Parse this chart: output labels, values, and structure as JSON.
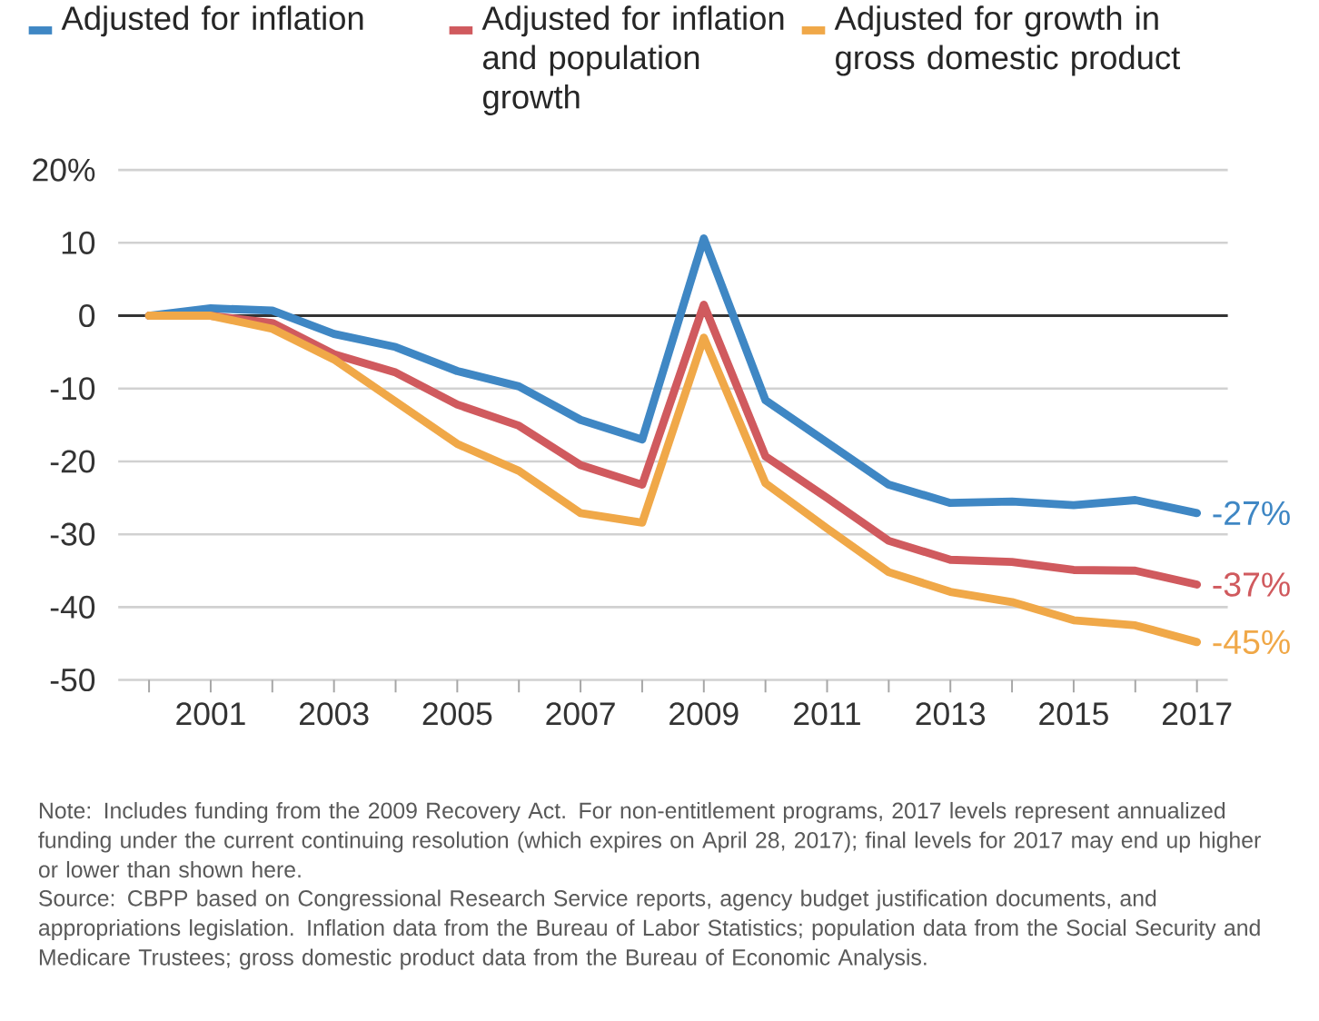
{
  "chart_data": {
    "type": "line",
    "x": [
      2000,
      2001,
      2002,
      2003,
      2004,
      2005,
      2006,
      2007,
      2008,
      2009,
      2010,
      2011,
      2012,
      2013,
      2014,
      2015,
      2016,
      2017
    ],
    "series": [
      {
        "name": "Adjusted for inflation",
        "color": "#3f87c4",
        "values": [
          0,
          1,
          0.7,
          -2.5,
          -4.3,
          -7.6,
          -9.7,
          -14.3,
          -17,
          10.6,
          -11.6,
          -17.4,
          -23.2,
          -25.7,
          -25.5,
          -26,
          -25.3,
          -27.1
        ],
        "value_labels": [
          null,
          null,
          null,
          null,
          null,
          null,
          null,
          null,
          null,
          null,
          null,
          null,
          null,
          null,
          null,
          null,
          null,
          "-27%"
        ]
      },
      {
        "name": "Adjusted for inflation and population growth",
        "color": "#d05a5e",
        "values": [
          0,
          0,
          -1,
          -5.3,
          -7.8,
          -12.2,
          -15.1,
          -20.5,
          -23.2,
          1.5,
          -19.3,
          -25,
          -30.9,
          -33.5,
          -33.8,
          -34.9,
          -35,
          -36.9
        ],
        "value_labels": [
          null,
          null,
          null,
          null,
          null,
          null,
          null,
          null,
          null,
          null,
          null,
          null,
          null,
          null,
          null,
          null,
          null,
          "-37%"
        ]
      },
      {
        "name": "Adjusted for growth in gross domestic product",
        "color": "#f0a848",
        "values": [
          0,
          0,
          -1.8,
          -6,
          -11.8,
          -17.6,
          -21.3,
          -27.1,
          -28.4,
          -3,
          -23,
          -29.2,
          -35.2,
          -37.9,
          -39.3,
          -41.8,
          -42.5,
          -44.8
        ],
        "value_labels": [
          null,
          null,
          null,
          null,
          null,
          null,
          null,
          null,
          null,
          null,
          null,
          null,
          null,
          null,
          null,
          null,
          null,
          "-45%"
        ]
      }
    ],
    "xlim": [
      1999.5,
      2017.5
    ],
    "xticks": [
      {
        "value": 2000,
        "label": null
      },
      2001,
      {
        "value": 2002,
        "label": null
      },
      2003,
      {
        "value": 2004,
        "label": null
      },
      2005,
      {
        "value": 2006,
        "label": null
      },
      2007,
      {
        "value": 2008,
        "label": null
      },
      2009,
      {
        "value": 2010,
        "label": null
      },
      2011,
      {
        "value": 2012,
        "label": null
      },
      2013,
      {
        "value": 2014,
        "label": null
      },
      2015,
      {
        "value": 2016,
        "label": null
      },
      2017
    ],
    "ylim": [
      -50,
      20
    ],
    "yticks": [
      -50,
      -40,
      -30,
      -20,
      -10,
      0,
      10,
      {
        "value": 20,
        "label": "20%"
      }
    ],
    "ref_lines": [
      {
        "axis": "y",
        "value": 0,
        "color": "#333333"
      }
    ],
    "grid": "y",
    "legend": "top",
    "marker": "none",
    "line_style": "solid",
    "annotations": [
      "Note: Includes funding from the 2009 Recovery Act. For non-entitlement programs, 2017 levels represent annualized funding under the current continuing resolution (which expires on April 28, 2017); final levels for 2017 may end up higher or lower than shown here.",
      "Source: CBPP based on Congressional Research Service reports, agency budget justification documents, and appropriations legislation. Inflation data from the Bureau of Labor Statistics; population data from the Social Security and Medicare Trustees; gross domestic product data from the Bureau of Economic Analysis."
    ]
  }
}
